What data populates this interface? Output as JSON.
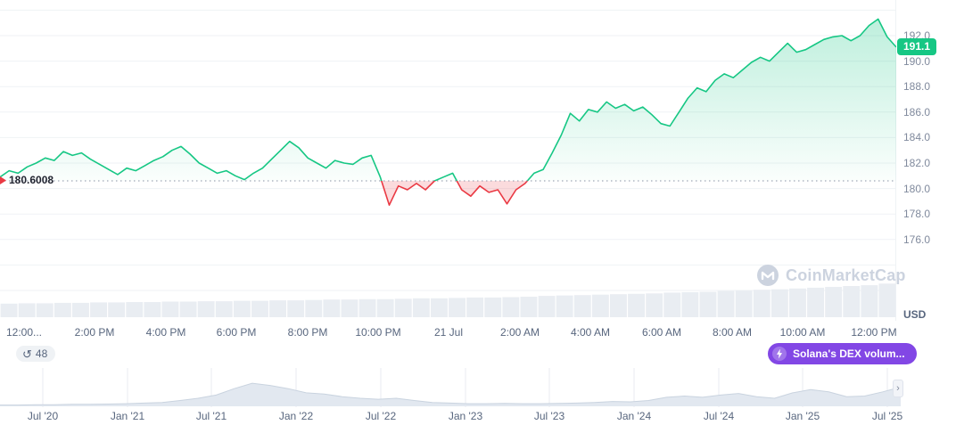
{
  "colors": {
    "up": "#16c784",
    "down": "#ea3943",
    "accent_purple": "#8247e5",
    "axis_text": "#808a9d",
    "label_text": "#58667e",
    "gridline": "#eff2f5",
    "volume_fill": "#e9edf2",
    "navigator_fill": "#e2e8f0"
  },
  "chart_data": {
    "type": "line",
    "title": "",
    "unit": "USD",
    "last_price_label": "191.1",
    "baseline_value": 180.6008,
    "baseline_label": "180.6008",
    "ylim": [
      172,
      194
    ],
    "y_ticks": [
      "192.0",
      "190.0",
      "188.0",
      "186.0",
      "184.0",
      "182.0",
      "180.0",
      "178.0",
      "176.0"
    ],
    "x_ticks": [
      "12:00...",
      "2:00 PM",
      "4:00 PM",
      "6:00 PM",
      "8:00 PM",
      "10:00 PM",
      "21 Jul",
      "2:00 AM",
      "4:00 AM",
      "6:00 AM",
      "8:00 AM",
      "10:00 AM",
      "12:00 PM"
    ],
    "series": [
      {
        "name": "price",
        "values": [
          180.9,
          181.4,
          181.2,
          181.7,
          182.0,
          182.4,
          182.2,
          182.9,
          182.6,
          182.8,
          182.3,
          181.9,
          181.5,
          181.1,
          181.6,
          181.4,
          181.8,
          182.2,
          182.5,
          183.0,
          183.3,
          182.7,
          182.0,
          181.6,
          181.2,
          181.4,
          181.0,
          180.7,
          181.2,
          181.6,
          182.3,
          183.0,
          183.7,
          183.2,
          182.4,
          182.0,
          181.6,
          182.2,
          182.0,
          181.9,
          182.4,
          182.6,
          180.9,
          178.7,
          180.2,
          179.9,
          180.4,
          179.9,
          180.6,
          180.9,
          181.2,
          179.9,
          179.4,
          180.2,
          179.7,
          179.9,
          178.8,
          179.9,
          180.4,
          181.2,
          181.5,
          182.8,
          184.2,
          185.9,
          185.3,
          186.2,
          186.0,
          186.8,
          186.3,
          186.6,
          186.1,
          186.4,
          185.8,
          185.1,
          184.9,
          186.0,
          187.1,
          187.9,
          187.6,
          188.5,
          189.0,
          188.7,
          189.3,
          189.9,
          190.3,
          190.0,
          190.7,
          191.4,
          190.7,
          190.9,
          191.3,
          191.7,
          191.9,
          192.0,
          191.6,
          192.0,
          192.8,
          193.3,
          191.9,
          191.1
        ]
      }
    ],
    "volume": [
      0.33,
      0.34,
      0.34,
      0.35,
      0.35,
      0.36,
      0.36,
      0.37,
      0.37,
      0.38,
      0.38,
      0.39,
      0.39,
      0.4,
      0.4,
      0.41,
      0.41,
      0.42,
      0.43,
      0.43,
      0.44,
      0.44,
      0.45,
      0.46,
      0.46,
      0.47,
      0.48,
      0.48,
      0.49,
      0.5,
      0.52,
      0.53,
      0.54,
      0.55,
      0.56,
      0.57,
      0.58,
      0.6,
      0.61,
      0.62,
      0.64,
      0.65,
      0.67,
      0.68,
      0.7,
      0.72,
      0.74,
      0.76,
      0.78,
      0.82
    ],
    "navigator": {
      "x_ticks": [
        "Jul '20",
        "Jan '21",
        "Jul '21",
        "Jan '22",
        "Jul '22",
        "Jan '23",
        "Jul '23",
        "Jan '24",
        "Jul '24",
        "Jan '25",
        "Jul '25"
      ],
      "values": [
        0.04,
        0.04,
        0.05,
        0.05,
        0.06,
        0.06,
        0.07,
        0.08,
        0.1,
        0.12,
        0.18,
        0.25,
        0.35,
        0.55,
        0.72,
        0.65,
        0.55,
        0.42,
        0.38,
        0.3,
        0.25,
        0.22,
        0.25,
        0.18,
        0.12,
        0.1,
        0.08,
        0.08,
        0.09,
        0.08,
        0.08,
        0.09,
        0.1,
        0.12,
        0.15,
        0.14,
        0.18,
        0.28,
        0.32,
        0.28,
        0.35,
        0.4,
        0.3,
        0.25,
        0.42,
        0.52,
        0.45,
        0.3,
        0.32,
        0.45,
        0.6
      ]
    }
  },
  "history_badge": {
    "icon": "↺",
    "count": "48"
  },
  "alert_badge": {
    "label": "Solana's DEX volum..."
  },
  "watermark": {
    "text": "CoinMarketCap"
  },
  "scroll_button": {
    "icon": "›"
  }
}
